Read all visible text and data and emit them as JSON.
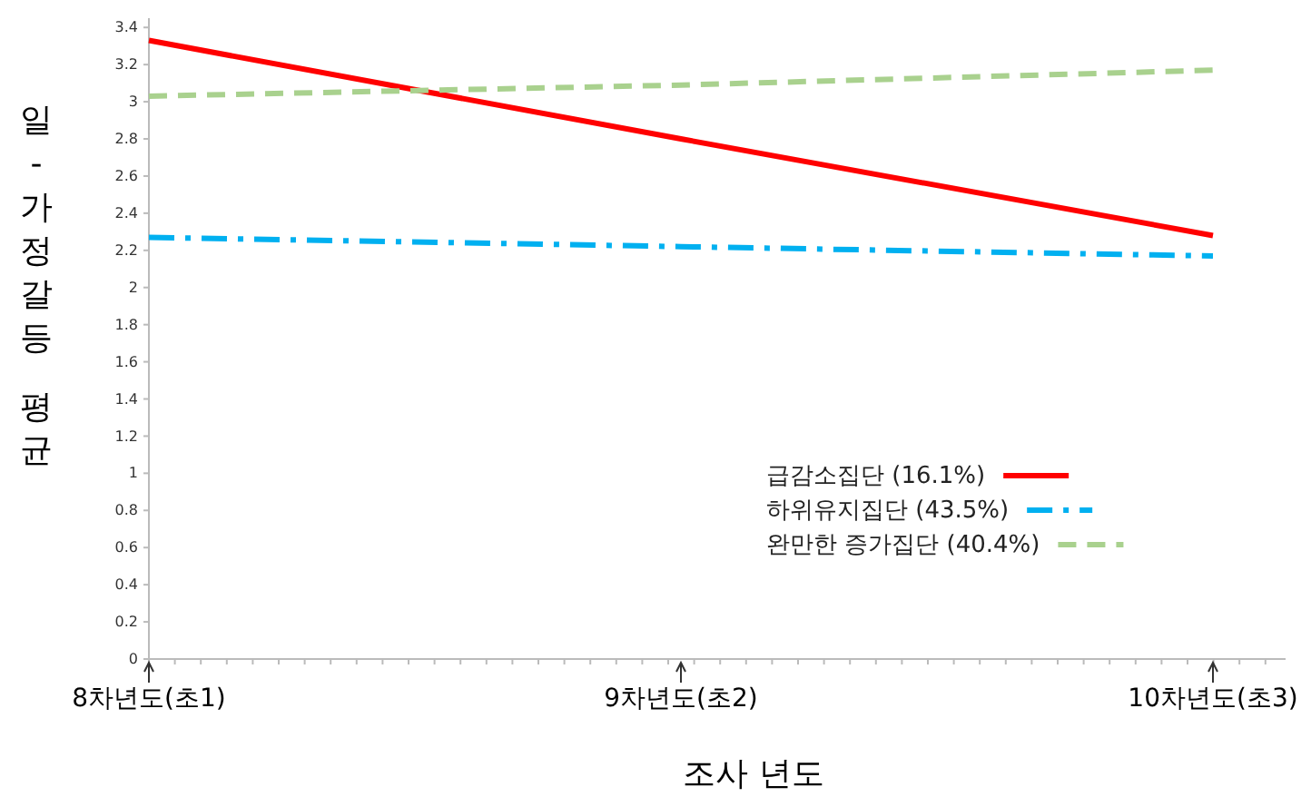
{
  "chart_data": {
    "type": "line",
    "xlabel": "조사 년도",
    "ylabel": "일-가정갈등 평균",
    "categories": [
      "8차년도(초1)",
      "9차년도(초2)",
      "10차년도(초3)"
    ],
    "series": [
      {
        "name": "급감소집단 (16.1%)",
        "color": "#ff0000",
        "values": [
          3.33,
          2.8,
          2.28
        ],
        "line_style": "solid"
      },
      {
        "name": "하위유지집단 (43.5%)",
        "color": "#00b0f0",
        "values": [
          2.27,
          2.22,
          2.17
        ],
        "line_style": "dashdot"
      },
      {
        "name": "완만한 증가집단 (40.4%)",
        "color": "#a9d18e",
        "values": [
          3.03,
          3.09,
          3.17
        ],
        "line_style": "dashed"
      }
    ],
    "ylim": [
      0,
      3.45
    ],
    "yticks": [
      0,
      0.2,
      0.4,
      0.6,
      0.8,
      1,
      1.2,
      1.4,
      1.6,
      1.8,
      2,
      2.2,
      2.4,
      2.6,
      2.8,
      3,
      3.2,
      3.4
    ],
    "grid": false,
    "legend": "bottom right",
    "marker": "none"
  }
}
